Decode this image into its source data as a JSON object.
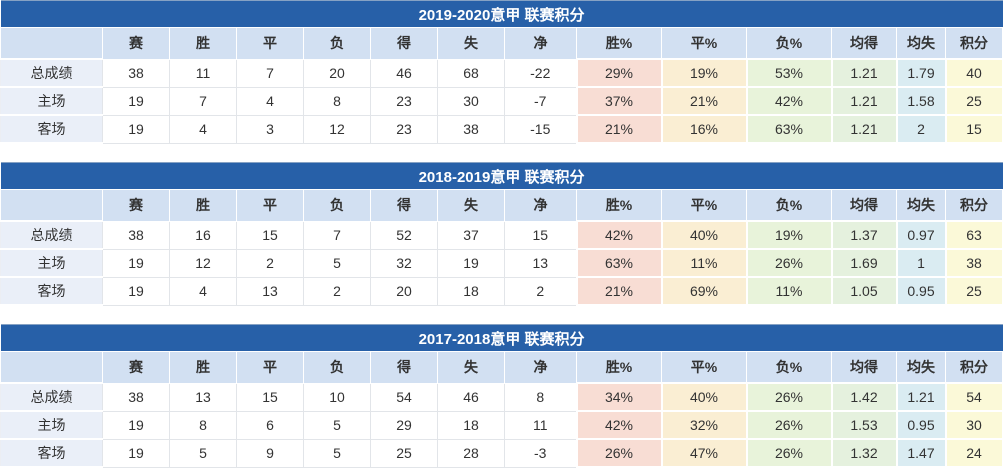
{
  "colors": {
    "title-bg": "#2760a8",
    "title-text": "#ffffff",
    "header-bg": "#d2e0f2",
    "label-bg": "#eaeff8",
    "win-pct-bg": "#f8ddd4",
    "draw-pct-bg": "#faeed3",
    "loss-pct-bg": "#e8f3da",
    "avg-for-bg": "#e5f1de",
    "avg-against-bg": "#daecf2",
    "points-bg": "#fbf9d8",
    "grid-border": "#e2e5e9",
    "text": "#333333"
  },
  "columns": [
    "",
    "赛",
    "胜",
    "平",
    "负",
    "得",
    "失",
    "净",
    "胜%",
    "平%",
    "负%",
    "均得",
    "均失",
    "积分"
  ],
  "tables": [
    {
      "title": "2019-2020意甲 联赛积分",
      "rows": [
        {
          "label": "总成绩",
          "values": [
            "38",
            "11",
            "7",
            "20",
            "46",
            "68",
            "-22",
            "29%",
            "19%",
            "53%",
            "1.21",
            "1.79",
            "40"
          ]
        },
        {
          "label": "主场",
          "values": [
            "19",
            "7",
            "4",
            "8",
            "23",
            "30",
            "-7",
            "37%",
            "21%",
            "42%",
            "1.21",
            "1.58",
            "25"
          ]
        },
        {
          "label": "客场",
          "values": [
            "19",
            "4",
            "3",
            "12",
            "23",
            "38",
            "-15",
            "21%",
            "16%",
            "63%",
            "1.21",
            "2",
            "15"
          ]
        }
      ]
    },
    {
      "title": "2018-2019意甲 联赛积分",
      "rows": [
        {
          "label": "总成绩",
          "values": [
            "38",
            "16",
            "15",
            "7",
            "52",
            "37",
            "15",
            "42%",
            "40%",
            "19%",
            "1.37",
            "0.97",
            "63"
          ]
        },
        {
          "label": "主场",
          "values": [
            "19",
            "12",
            "2",
            "5",
            "32",
            "19",
            "13",
            "63%",
            "11%",
            "26%",
            "1.69",
            "1",
            "38"
          ]
        },
        {
          "label": "客场",
          "values": [
            "19",
            "4",
            "13",
            "2",
            "20",
            "18",
            "2",
            "21%",
            "69%",
            "11%",
            "1.05",
            "0.95",
            "25"
          ]
        }
      ]
    },
    {
      "title": "2017-2018意甲 联赛积分",
      "rows": [
        {
          "label": "总成绩",
          "values": [
            "38",
            "13",
            "15",
            "10",
            "54",
            "46",
            "8",
            "34%",
            "40%",
            "26%",
            "1.42",
            "1.21",
            "54"
          ]
        },
        {
          "label": "主场",
          "values": [
            "19",
            "8",
            "6",
            "5",
            "29",
            "18",
            "11",
            "42%",
            "32%",
            "26%",
            "1.53",
            "0.95",
            "30"
          ]
        },
        {
          "label": "客场",
          "values": [
            "19",
            "5",
            "9",
            "5",
            "25",
            "28",
            "-3",
            "26%",
            "47%",
            "26%",
            "1.32",
            "1.47",
            "24"
          ]
        }
      ]
    }
  ]
}
